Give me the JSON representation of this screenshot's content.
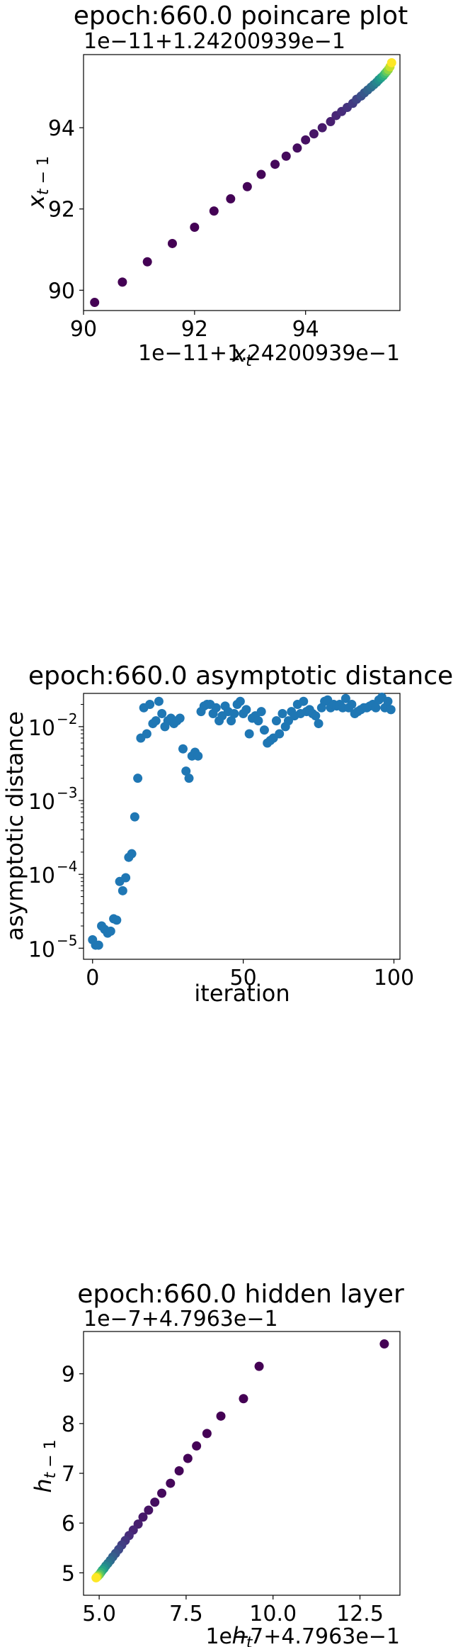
{
  "chart_data": [
    {
      "type": "scatter",
      "title": "epoch:660.0 poincare plot",
      "xlabel": "x_t",
      "ylabel": "x_{t-1}",
      "x_offset_label": "1e−11+1.24200939e−1",
      "y_offset_label": "1e−11+1.24200939e−1",
      "xlim": [
        90,
        95.7
      ],
      "ylim": [
        89.5,
        95.8
      ],
      "xticks": [
        "90",
        "92",
        "94"
      ],
      "xtick_values": [
        90,
        92,
        94
      ],
      "yticks": [
        "90",
        "92",
        "94"
      ],
      "ytick_values": [
        90,
        92,
        94
      ],
      "colormap": "viridis",
      "x": [
        90.2,
        90.7,
        91.15,
        91.6,
        92.0,
        92.35,
        92.65,
        92.95,
        93.2,
        93.45,
        93.65,
        93.85,
        94.0,
        94.15,
        94.3,
        94.45,
        94.55,
        94.65,
        94.75,
        94.85,
        94.92,
        95.0,
        95.06,
        95.12,
        95.18,
        95.23,
        95.28,
        95.32,
        95.36,
        95.4,
        95.43,
        95.46,
        95.49,
        95.52,
        95.55
      ],
      "y": [
        89.7,
        90.2,
        90.7,
        91.15,
        91.55,
        91.95,
        92.25,
        92.55,
        92.85,
        93.1,
        93.3,
        93.5,
        93.7,
        93.85,
        94.0,
        94.15,
        94.3,
        94.4,
        94.5,
        94.6,
        94.7,
        94.78,
        94.86,
        94.93,
        95.0,
        95.06,
        95.12,
        95.18,
        95.23,
        95.28,
        95.33,
        95.38,
        95.43,
        95.5,
        95.6
      ]
    },
    {
      "type": "scatter",
      "title": "epoch:660.0 asymptotic distance",
      "xlabel": "iteration",
      "ylabel": "asymptotic distance",
      "yscale": "log",
      "xlim": [
        -3,
        102
      ],
      "ylim_log10": [
        -5.15,
        -1.55
      ],
      "xticks": [
        "0",
        "50",
        "100"
      ],
      "xtick_values": [
        0,
        50,
        100
      ],
      "yticks": [
        "10",
        "10",
        "10",
        "10"
      ],
      "ytick_exponents": [
        "−5",
        "−4",
        "−3",
        "−2"
      ],
      "ytick_values_log10": [
        -5,
        -4,
        -3,
        -2
      ],
      "color": "#1f77b4",
      "x": [
        0,
        1,
        2,
        3,
        4,
        5,
        6,
        7,
        8,
        9,
        10,
        11,
        12,
        13,
        14,
        15,
        16,
        17,
        18,
        19,
        20,
        21,
        22,
        23,
        24,
        25,
        26,
        27,
        28,
        29,
        30,
        31,
        32,
        33,
        34,
        35,
        36,
        37,
        38,
        39,
        40,
        41,
        42,
        43,
        44,
        45,
        46,
        47,
        48,
        49,
        50,
        51,
        52,
        53,
        54,
        55,
        56,
        57,
        58,
        59,
        60,
        61,
        62,
        63,
        64,
        65,
        66,
        67,
        68,
        69,
        70,
        71,
        72,
        73,
        74,
        75,
        76,
        77,
        78,
        79,
        80,
        81,
        82,
        83,
        84,
        85,
        86,
        87,
        88,
        89,
        90,
        91,
        92,
        93,
        94,
        95,
        96,
        97,
        98,
        99
      ],
      "y": [
        1.3e-05,
        1.1e-05,
        1.1e-05,
        2e-05,
        1.8e-05,
        1.6e-05,
        1.7e-05,
        2.5e-05,
        2.4e-05,
        8e-05,
        6e-05,
        9e-05,
        0.00017,
        0.00019,
        0.0006,
        0.002,
        0.007,
        0.018,
        0.008,
        0.02,
        0.011,
        0.012,
        0.022,
        0.015,
        0.01,
        0.012,
        0.013,
        0.011,
        0.012,
        0.013,
        0.005,
        0.0025,
        0.002,
        0.004,
        0.0045,
        0.004,
        0.016,
        0.019,
        0.02,
        0.02,
        0.015,
        0.018,
        0.012,
        0.014,
        0.019,
        0.016,
        0.012,
        0.015,
        0.02,
        0.022,
        0.015,
        0.017,
        0.008,
        0.013,
        0.014,
        0.012,
        0.016,
        0.009,
        0.006,
        0.0065,
        0.007,
        0.012,
        0.008,
        0.015,
        0.01,
        0.012,
        0.016,
        0.014,
        0.02,
        0.015,
        0.022,
        0.016,
        0.017,
        0.015,
        0.014,
        0.011,
        0.018,
        0.022,
        0.023,
        0.018,
        0.02,
        0.019,
        0.02,
        0.018,
        0.024,
        0.018,
        0.02,
        0.015,
        0.016,
        0.017,
        0.018,
        0.018,
        0.019,
        0.02,
        0.018,
        0.023,
        0.025,
        0.018,
        0.022,
        0.017
      ]
    },
    {
      "type": "scatter",
      "title": "epoch:660.0 hidden layer",
      "xlabel": "h_t",
      "ylabel": "h_{t-1}",
      "x_offset_label": "1e−7+4.7963e−1",
      "y_offset_label": "1e−7+4.7963e−1",
      "xlim": [
        4.55,
        13.65
      ],
      "ylim": [
        4.55,
        9.85
      ],
      "xticks": [
        "5.0",
        "7.5",
        "10.0",
        "12.5"
      ],
      "xtick_values": [
        5.0,
        7.5,
        10.0,
        12.5
      ],
      "yticks": [
        "5",
        "6",
        "7",
        "8",
        "9"
      ],
      "ytick_values": [
        5,
        6,
        7,
        8,
        9
      ],
      "colormap": "viridis",
      "x": [
        13.2,
        9.6,
        9.15,
        8.5,
        8.1,
        7.8,
        7.55,
        7.3,
        7.05,
        6.8,
        6.6,
        6.42,
        6.26,
        6.12,
        5.98,
        5.86,
        5.75,
        5.65,
        5.56,
        5.47,
        5.39,
        5.32,
        5.25,
        5.19,
        5.14,
        5.09,
        5.05,
        5.01,
        4.97,
        4.94,
        4.91
      ],
      "y": [
        9.6,
        9.15,
        8.5,
        8.15,
        7.8,
        7.55,
        7.3,
        7.05,
        6.8,
        6.6,
        6.42,
        6.26,
        6.12,
        5.98,
        5.86,
        5.75,
        5.65,
        5.56,
        5.47,
        5.39,
        5.32,
        5.25,
        5.19,
        5.14,
        5.09,
        5.05,
        5.01,
        4.97,
        4.94,
        4.92,
        4.9
      ]
    }
  ]
}
